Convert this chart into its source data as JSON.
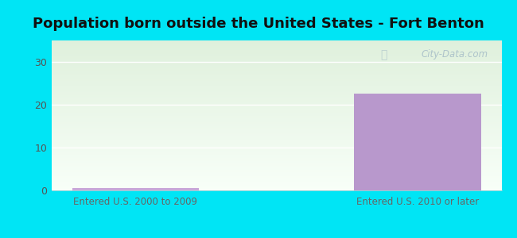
{
  "title": "Population born outside the United States - Fort Benton",
  "categories": [
    "Entered U.S. 2000 to 2009",
    "Entered U.S. 2010 or later"
  ],
  "values": [
    0.5,
    22.5
  ],
  "bar_color_1": "#c8a8d8",
  "bar_color_2": "#b898cc",
  "ylim": [
    0,
    35
  ],
  "yticks": [
    0,
    10,
    20,
    30
  ],
  "background_outer": "#00e5f5",
  "bg_gradient_top": "#dff0dc",
  "bg_gradient_bottom": "#f8fff8",
  "tick_label_color": "#555555",
  "xtick_label_color": "#666666",
  "title_fontsize": 13,
  "title_color": "#111111",
  "watermark_text": "City-Data.com",
  "watermark_color": "#a8bfc8"
}
